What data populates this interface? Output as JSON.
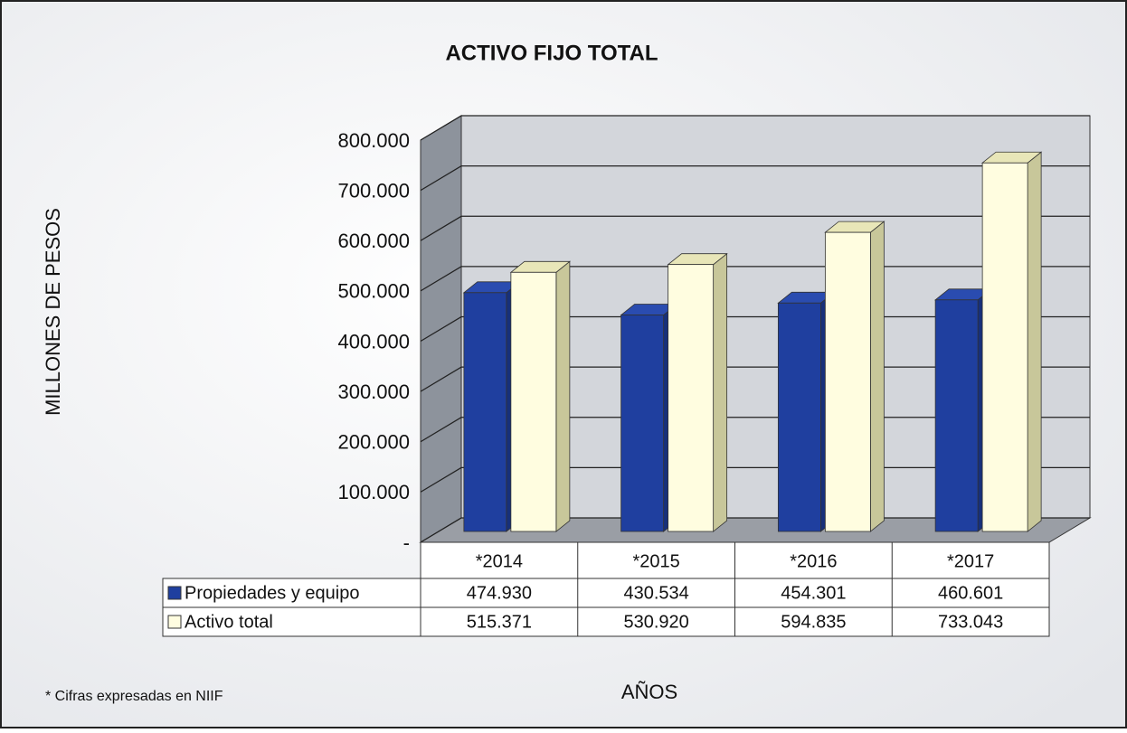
{
  "chart_data": {
    "type": "bar3d",
    "title": "ACTIVO FIJO TOTAL",
    "y_label": "MILLONES DE PESOS",
    "x_label": "AÑOS",
    "note": "* Cifras expresadas en NIIF",
    "categories": [
      "*2014",
      "*2015",
      "*2016",
      "*2017"
    ],
    "series": [
      {
        "name": "Propiedades y equipo",
        "color": "#1f3f9f",
        "values": [
          474930,
          430534,
          454301,
          460601
        ],
        "value_labels": [
          "474.930",
          "430.534",
          "454.301",
          "460.601"
        ]
      },
      {
        "name": "Activo total",
        "color": "#fffde0",
        "values": [
          515371,
          530920,
          594835,
          733043
        ],
        "value_labels": [
          "515.371",
          "530.920",
          "594.835",
          "733.043"
        ]
      }
    ],
    "ylim": [
      0,
      800000
    ],
    "yticks": [
      {
        "value": 0,
        "label": "-"
      },
      {
        "value": 100000,
        "label": "100.000"
      },
      {
        "value": 200000,
        "label": "200.000"
      },
      {
        "value": 300000,
        "label": "300.000"
      },
      {
        "value": 400000,
        "label": "400.000"
      },
      {
        "value": 500000,
        "label": "500.000"
      },
      {
        "value": 600000,
        "label": "600.000"
      },
      {
        "value": 700000,
        "label": "700.000"
      },
      {
        "value": 800000,
        "label": "800.000"
      }
    ],
    "grid": true
  }
}
